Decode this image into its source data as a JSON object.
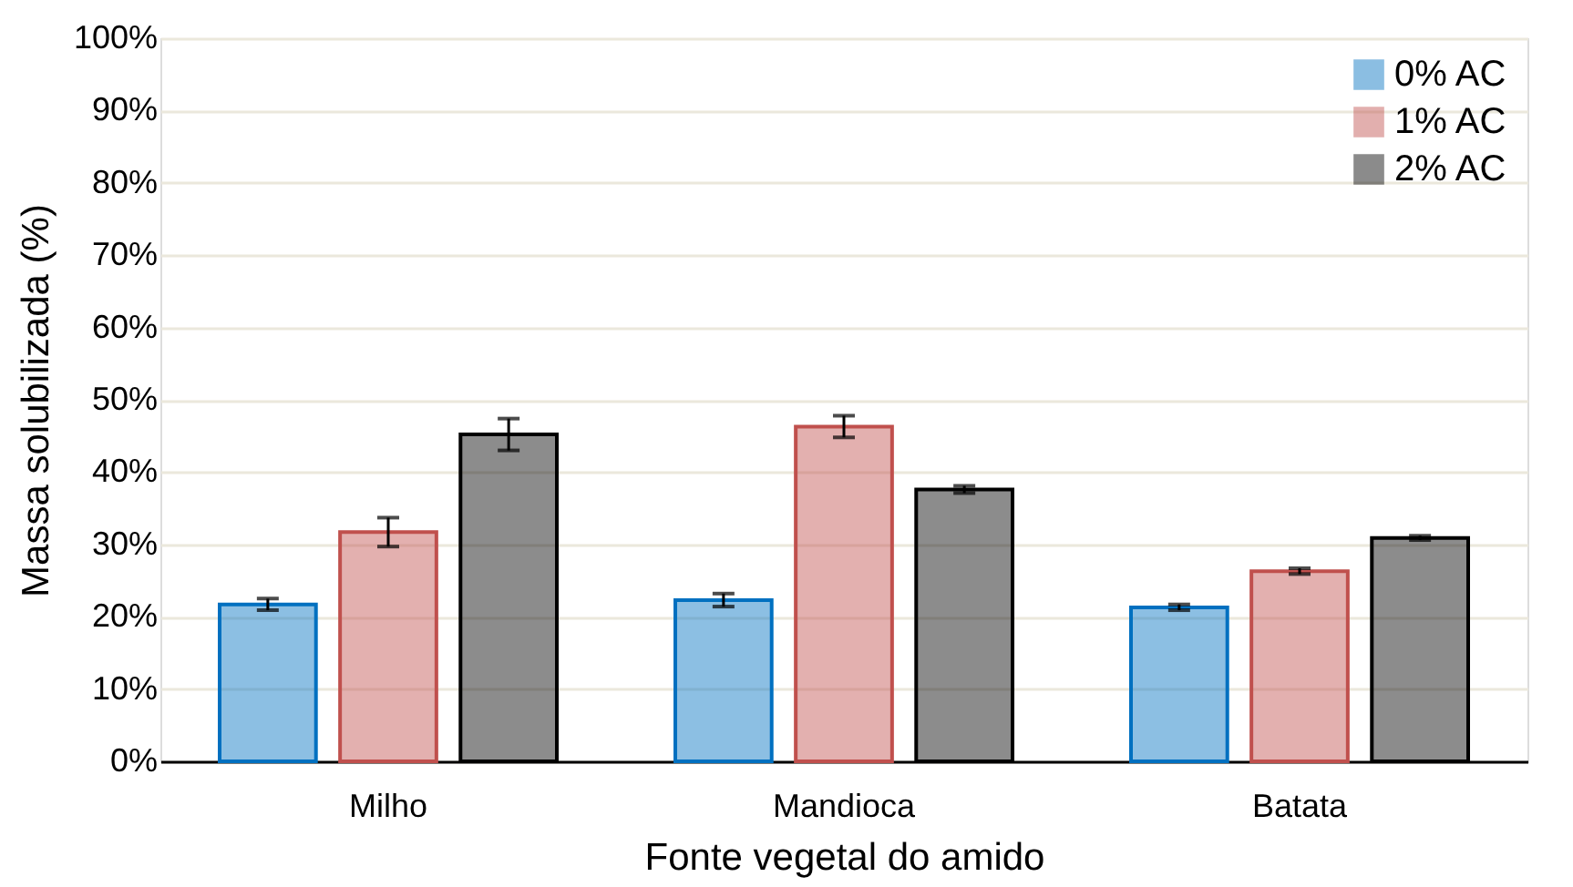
{
  "chart_data": {
    "type": "bar",
    "xlabel": "Fonte vegetal do amido",
    "ylabel": "Massa solubilizada (%)",
    "categories": [
      "Milho",
      "Mandioca",
      "Batata"
    ],
    "series": [
      {
        "name": "0% AC",
        "color": "#0070c0",
        "values": [
          21.7,
          22.3,
          21.3
        ],
        "errors": [
          0.8,
          0.9,
          0.4
        ]
      },
      {
        "name": "1% AC",
        "color": "#c0504d",
        "values": [
          31.7,
          46.3,
          26.3
        ],
        "errors": [
          2.0,
          1.5,
          0.4
        ]
      },
      {
        "name": "2% AC",
        "color": "#000000",
        "values": [
          45.2,
          37.6,
          30.9
        ],
        "errors": [
          2.2,
          0.5,
          0.3
        ]
      }
    ],
    "ylim": [
      0,
      100
    ],
    "yticks": [
      {
        "value": 0,
        "label": "0%"
      },
      {
        "value": 10,
        "label": "10%"
      },
      {
        "value": 20,
        "label": "20%"
      },
      {
        "value": 30,
        "label": "30%"
      },
      {
        "value": 40,
        "label": "40%"
      },
      {
        "value": 50,
        "label": "50%"
      },
      {
        "value": 60,
        "label": "60%"
      },
      {
        "value": 70,
        "label": "70%"
      },
      {
        "value": 80,
        "label": "80%"
      },
      {
        "value": 90,
        "label": "90%"
      },
      {
        "value": 100,
        "label": "100%"
      }
    ],
    "grid": "y",
    "legend": "top right"
  }
}
